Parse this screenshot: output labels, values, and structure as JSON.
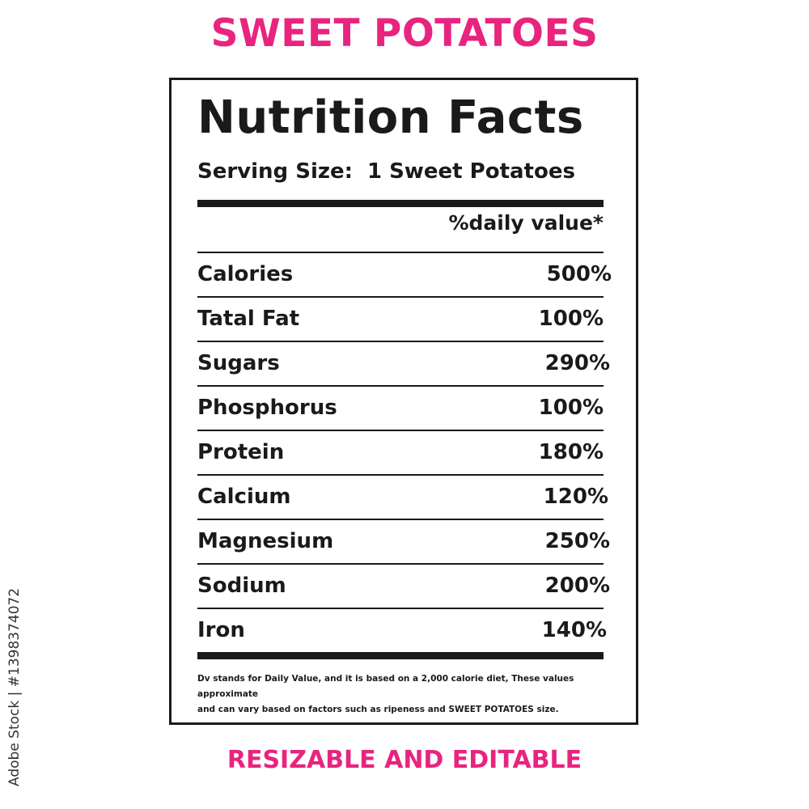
{
  "title": "SWEET POTATOES",
  "label": {
    "heading": "Nutrition Facts",
    "serving_label": "Serving Size:",
    "serving_value": "1 Sweet Potatoes",
    "dv_header": "%daily value*",
    "rows": [
      {
        "nutrient": "Calories",
        "value": "500%"
      },
      {
        "nutrient": "Tatal Fat",
        "value": "100%"
      },
      {
        "nutrient": "Sugars",
        "value": "290%"
      },
      {
        "nutrient": "Phosphorus",
        "value": "100%"
      },
      {
        "nutrient": "Protein",
        "value": "180%"
      },
      {
        "nutrient": "Calcium",
        "value": "120%"
      },
      {
        "nutrient": "Magnesium",
        "value": "250%"
      },
      {
        "nutrient": "Sodium",
        "value": "200%"
      },
      {
        "nutrient": "Iron",
        "value": "140%"
      }
    ],
    "footnote_line1": "Dv stands for Daily Value, and it is based on a 2,000 calorie diet, These values approximate",
    "footnote_line2": "and can vary based on factors such as ripeness and SWEET POTATOES size."
  },
  "subtitle": "RESIZABLE AND EDITABLE",
  "stock_id": "Adobe Stock | #1398374072",
  "colors": {
    "accent": "#e8247f",
    "ink": "#1a1a1a"
  }
}
